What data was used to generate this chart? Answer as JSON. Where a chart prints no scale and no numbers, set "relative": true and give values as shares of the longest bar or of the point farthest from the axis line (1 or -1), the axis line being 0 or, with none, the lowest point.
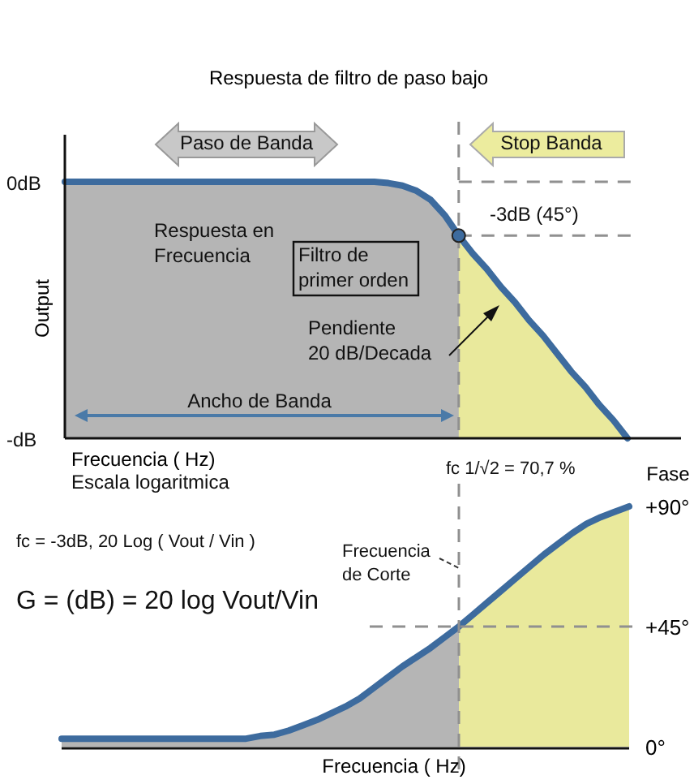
{
  "chart_data": [
    {
      "type": "area",
      "title": "Respuesta de filtro de paso bajo",
      "relative": true,
      "ylabel": "Output",
      "xlabel": "Frecuencia  ( Hz)",
      "categories": [
        null,
        null,
        null,
        null,
        null,
        null,
        null,
        null,
        null,
        null,
        null,
        null,
        null,
        null,
        null,
        null,
        null,
        null,
        null,
        null,
        null,
        null,
        null,
        null,
        null,
        null,
        null,
        null,
        null,
        null,
        null,
        null,
        null,
        null,
        null,
        null,
        null,
        null,
        null,
        null,
        null
      ],
      "series": [
        {
          "color": "#3d6b9e",
          "values": [
            1,
            1,
            1,
            1,
            1,
            1,
            1,
            1,
            1,
            1,
            1,
            1,
            1,
            1,
            1,
            1,
            1,
            1,
            1,
            1,
            1,
            1,
            1,
            0.995,
            0.985,
            0.965,
            0.93,
            0.87,
            0.79,
            0.72,
            0.66,
            0.59,
            0.53,
            0.46,
            0.4,
            0.33,
            0.26,
            0.2,
            0.13,
            0.07,
            0
          ]
        }
      ],
      "annotations": [
        "0dB",
        "-dB",
        "Paso de Banda",
        "Stop Banda",
        "Respuesta en\nFrecuencia",
        "Filtro de\nprimer orden",
        "Pendiente\n20 dB/Decada",
        "Ancho de Banda",
        "Escala logaritmica",
        "-3dB (45°)"
      ],
      "grid": false
    },
    {
      "type": "area",
      "ylabel": "Fase",
      "xlabel": "Frecuencia  ( Hz)",
      "ylim": [
        0,
        90
      ],
      "yticks": [
        {
          "value": 0,
          "label": "0°"
        },
        {
          "value": 45,
          "label": "+45°"
        },
        {
          "value": 90,
          "label": "+90°"
        }
      ],
      "categories": [
        null,
        null,
        null,
        null,
        null,
        null,
        null,
        null,
        null,
        null,
        null,
        null,
        null,
        null,
        null,
        null,
        null,
        null,
        null,
        null,
        null,
        null,
        null,
        null,
        null,
        null,
        null,
        null,
        null,
        null,
        null,
        null,
        null,
        null,
        null,
        null,
        null,
        null,
        null,
        null,
        null
      ],
      "series": [
        {
          "color": "#3d6b9e",
          "values": [
            3,
            3,
            3,
            3,
            3,
            3,
            3,
            3,
            3,
            3,
            3,
            3,
            3,
            3,
            4,
            4.5,
            6,
            8,
            10,
            12.5,
            15,
            18,
            22,
            26,
            30,
            33.5,
            37,
            41,
            45,
            49.5,
            54,
            58.5,
            63,
            67.5,
            72,
            76,
            80,
            83.5,
            86,
            88,
            90
          ]
        }
      ],
      "ref_lines": [
        {
          "axis": "y",
          "value": 45,
          "color": "#909090",
          "line_style": "dashed"
        }
      ],
      "annotations": [
        "fc 1/√2 = 70,7 %",
        "fc = -3dB, 20 Log ( Vout / Vin )",
        "G = (dB) = 20 log Vout/Vin",
        "Frecuencia\nde Corte"
      ],
      "grid": false
    }
  ]
}
